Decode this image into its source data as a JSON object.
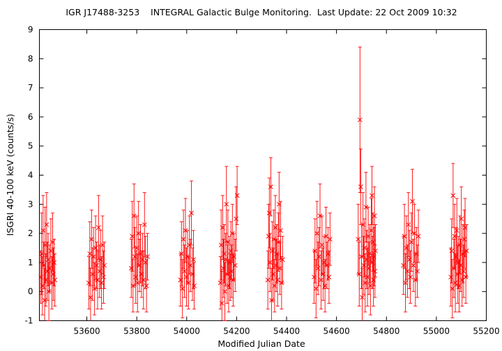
{
  "chart_data": {
    "type": "scatter",
    "title": "IGR J17488-3253    INTEGRAL Galactic Bulge Monitoring.  Last Update: 22 Oct 2009 10:32",
    "xlabel": "Modified Julian Date",
    "ylabel": "ISGRI 40-100 keV (counts/s)",
    "xlim": [
      53410,
      55200
    ],
    "ylim": [
      -1,
      9
    ],
    "xticks": [
      53600,
      53800,
      54000,
      54200,
      54400,
      54600,
      54800,
      55000,
      55200
    ],
    "yticks": [
      -1,
      0,
      1,
      2,
      3,
      4,
      5,
      6,
      7,
      8,
      9
    ],
    "grid": false,
    "marker": "x",
    "error_bars": "vertical",
    "color": "#ff0000",
    "series": [
      {
        "points": [
          [
            53416,
            0.5,
            0.9
          ],
          [
            53419,
            1.3,
            1.4
          ],
          [
            53422,
            0.2,
            1.0
          ],
          [
            53425,
            2.1,
            1.2
          ],
          [
            53428,
            0.9,
            0.8
          ],
          [
            53431,
            -0.3,
            1.1
          ],
          [
            53433,
            1.6,
            1.3
          ],
          [
            53436,
            0.4,
            0.9
          ],
          [
            53439,
            2.3,
            1.1
          ],
          [
            53442,
            0.7,
            1.0
          ],
          [
            53445,
            1.1,
            0.9
          ],
          [
            53448,
            0.0,
            1.0
          ],
          [
            53451,
            0.8,
            0.8
          ],
          [
            53456,
            1.4,
            1.1
          ],
          [
            53460,
            0.3,
            0.9
          ],
          [
            53463,
            1.7,
            1.0
          ],
          [
            53466,
            0.6,
            0.9
          ],
          [
            53469,
            1.0,
            0.8
          ],
          [
            53472,
            0.4,
            0.9
          ],
          [
            53608,
            0.3,
            0.9
          ],
          [
            53612,
            1.3,
            1.1
          ],
          [
            53615,
            -0.2,
            1.0
          ],
          [
            53619,
            1.8,
            1.0
          ],
          [
            53623,
            0.6,
            0.9
          ],
          [
            53627,
            1.2,
            1.0
          ],
          [
            53631,
            0.1,
            0.9
          ],
          [
            53635,
            1.5,
            1.1
          ],
          [
            53639,
            0.9,
            0.8
          ],
          [
            53643,
            0.4,
            1.0
          ],
          [
            53647,
            2.2,
            1.1
          ],
          [
            53651,
            0.7,
            0.9
          ],
          [
            53655,
            1.1,
            1.0
          ],
          [
            53659,
            0.3,
            0.9
          ],
          [
            53663,
            1.6,
            1.0
          ],
          [
            53667,
            0.5,
            0.9
          ],
          [
            53670,
            0.9,
            0.8
          ],
          [
            53778,
            0.8,
            1.0
          ],
          [
            53782,
            1.9,
            1.2
          ],
          [
            53785,
            0.2,
            0.9
          ],
          [
            53789,
            2.6,
            1.1
          ],
          [
            53792,
            1.2,
            1.0
          ],
          [
            53796,
            0.5,
            0.9
          ],
          [
            53800,
            1.5,
            1.1
          ],
          [
            53803,
            0.3,
            1.0
          ],
          [
            53807,
            2.0,
            1.1
          ],
          [
            53811,
            0.9,
            0.9
          ],
          [
            53815,
            1.3,
            1.0
          ],
          [
            53819,
            0.6,
            0.8
          ],
          [
            53823,
            1.1,
            0.9
          ],
          [
            53827,
            0.4,
            1.0
          ],
          [
            53831,
            2.3,
            1.1
          ],
          [
            53835,
            1.0,
            0.9
          ],
          [
            53839,
            0.2,
            0.9
          ],
          [
            53843,
            1.2,
            0.8
          ],
          [
            53975,
            0.4,
            0.9
          ],
          [
            53979,
            1.3,
            1.1
          ],
          [
            53983,
            0.1,
            1.0
          ],
          [
            53987,
            1.8,
            1.0
          ],
          [
            53991,
            0.7,
            0.9
          ],
          [
            53995,
            2.1,
            1.1
          ],
          [
            53999,
            0.5,
            1.0
          ],
          [
            54003,
            1.2,
            0.9
          ],
          [
            54007,
            0.3,
            0.9
          ],
          [
            54011,
            1.6,
            1.0
          ],
          [
            54015,
            0.9,
            0.9
          ],
          [
            54019,
            2.7,
            1.1
          ],
          [
            54023,
            0.6,
            0.9
          ],
          [
            54027,
            1.1,
            1.0
          ],
          [
            54030,
            0.2,
            0.8
          ],
          [
            54135,
            0.3,
            0.9
          ],
          [
            54138,
            1.6,
            1.2
          ],
          [
            54141,
            -0.4,
            1.1
          ],
          [
            54144,
            2.2,
            1.1
          ],
          [
            54147,
            0.8,
            1.0
          ],
          [
            54150,
            1.3,
            1.0
          ],
          [
            54153,
            0.0,
            1.0
          ],
          [
            54156,
            1.1,
            0.9
          ],
          [
            54159,
            3.0,
            1.3
          ],
          [
            54162,
            0.6,
            1.0
          ],
          [
            54165,
            1.7,
            1.1
          ],
          [
            54168,
            0.2,
            0.9
          ],
          [
            54171,
            1.0,
            0.9
          ],
          [
            54174,
            0.5,
            0.8
          ],
          [
            54177,
            1.4,
            1.0
          ],
          [
            54180,
            0.7,
            0.9
          ],
          [
            54183,
            2.0,
            1.0
          ],
          [
            54186,
            0.4,
            0.9
          ],
          [
            54189,
            1.2,
            0.8
          ],
          [
            54194,
            0.9,
            0.9
          ],
          [
            54198,
            2.5,
            1.1
          ],
          [
            54202,
            3.3,
            1.0
          ],
          [
            54325,
            0.4,
            1.0
          ],
          [
            54328,
            1.9,
            1.1
          ],
          [
            54331,
            2.7,
            1.2
          ],
          [
            54334,
            1.0,
            1.0
          ],
          [
            54337,
            3.6,
            1.0
          ],
          [
            54340,
            -0.3,
            1.1
          ],
          [
            54343,
            1.4,
            1.0
          ],
          [
            54346,
            0.6,
            0.9
          ],
          [
            54349,
            1.8,
            1.0
          ],
          [
            54352,
            0.2,
            0.9
          ],
          [
            54355,
            2.2,
            1.1
          ],
          [
            54358,
            0.9,
            0.9
          ],
          [
            54361,
            1.3,
            1.0
          ],
          [
            54364,
            0.4,
            0.9
          ],
          [
            54367,
            1.7,
            1.0
          ],
          [
            54370,
            3.0,
            1.1
          ],
          [
            54373,
            0.8,
            0.9
          ],
          [
            54376,
            2.1,
            1.0
          ],
          [
            54380,
            0.3,
            0.9
          ],
          [
            54384,
            1.1,
            0.8
          ],
          [
            54510,
            0.5,
            0.9
          ],
          [
            54514,
            1.4,
            1.1
          ],
          [
            54518,
            0.1,
            1.0
          ],
          [
            54522,
            2.0,
            1.1
          ],
          [
            54526,
            0.8,
            0.9
          ],
          [
            54530,
            1.2,
            1.0
          ],
          [
            54534,
            2.6,
            1.1
          ],
          [
            54538,
            0.4,
            1.0
          ],
          [
            54542,
            1.6,
            1.0
          ],
          [
            54546,
            0.6,
            0.9
          ],
          [
            54550,
            1.0,
            0.9
          ],
          [
            54554,
            0.2,
            0.9
          ],
          [
            54558,
            1.9,
            1.0
          ],
          [
            54562,
            0.9,
            0.8
          ],
          [
            54566,
            1.3,
            0.9
          ],
          [
            54570,
            0.5,
            0.9
          ],
          [
            54574,
            1.8,
            0.9
          ],
          [
            54687,
            1.8,
            1.2
          ],
          [
            54691,
            0.6,
            1.1
          ],
          [
            54694,
            5.9,
            2.5
          ],
          [
            54697,
            3.6,
            1.3
          ],
          [
            54700,
            1.2,
            1.1
          ],
          [
            54703,
            -0.2,
            1.0
          ],
          [
            54706,
            2.3,
            1.1
          ],
          [
            54709,
            0.9,
            1.0
          ],
          [
            54712,
            1.5,
            1.0
          ],
          [
            54715,
            0.3,
            1.0
          ],
          [
            54718,
            2.9,
            1.2
          ],
          [
            54721,
            1.1,
            1.0
          ],
          [
            54724,
            0.5,
            1.0
          ],
          [
            54727,
            1.9,
            1.0
          ],
          [
            54730,
            0.8,
            0.9
          ],
          [
            54733,
            1.3,
            1.0
          ],
          [
            54736,
            0.2,
            1.0
          ],
          [
            54739,
            2.1,
            1.1
          ],
          [
            54742,
            3.3,
            1.0
          ],
          [
            54744,
            1.0,
            0.9
          ],
          [
            54746,
            1.7,
            1.0
          ],
          [
            54748,
            0.4,
            0.9
          ],
          [
            54750,
            1.2,
            1.0
          ],
          [
            54752,
            2.6,
            1.0
          ],
          [
            54754,
            0.7,
            0.9
          ],
          [
            54756,
            1.4,
            0.9
          ],
          [
            54868,
            0.9,
            1.0
          ],
          [
            54872,
            1.9,
            1.1
          ],
          [
            54876,
            0.3,
            1.0
          ],
          [
            54880,
            1.5,
            1.1
          ],
          [
            54884,
            0.7,
            0.9
          ],
          [
            54888,
            2.3,
            1.1
          ],
          [
            54892,
            1.1,
            1.0
          ],
          [
            54896,
            0.5,
            0.9
          ],
          [
            54900,
            1.7,
            1.0
          ],
          [
            54904,
            3.1,
            1.1
          ],
          [
            54908,
            0.9,
            0.9
          ],
          [
            54912,
            2.0,
            1.0
          ],
          [
            54916,
            0.4,
            0.9
          ],
          [
            54920,
            1.3,
            0.9
          ],
          [
            54924,
            0.7,
            0.9
          ],
          [
            54928,
            1.9,
            0.9
          ],
          [
            55058,
            0.5,
            1.0
          ],
          [
            55061,
            1.4,
            1.1
          ],
          [
            55064,
            0.1,
            1.0
          ],
          [
            55067,
            3.3,
            1.1
          ],
          [
            55070,
            0.8,
            1.0
          ],
          [
            55073,
            1.9,
            1.1
          ],
          [
            55076,
            0.3,
            1.0
          ],
          [
            55079,
            1.2,
            1.0
          ],
          [
            55082,
            2.1,
            1.1
          ],
          [
            55085,
            0.6,
            1.0
          ],
          [
            55088,
            1.0,
            0.9
          ],
          [
            55091,
            0.2,
            0.9
          ],
          [
            55094,
            1.6,
            1.0
          ],
          [
            55097,
            0.9,
            0.9
          ],
          [
            55100,
            2.5,
            1.1
          ],
          [
            55103,
            0.4,
            0.9
          ],
          [
            55106,
            1.3,
            1.0
          ],
          [
            55109,
            0.7,
            0.9
          ],
          [
            55112,
            1.8,
            1.0
          ],
          [
            55115,
            2.2,
            1.0
          ],
          [
            55118,
            0.5,
            0.9
          ],
          [
            55121,
            1.4,
            0.9
          ]
        ]
      }
    ]
  }
}
